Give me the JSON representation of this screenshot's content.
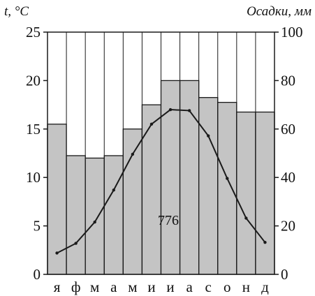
{
  "chart_data": {
    "type": "bar",
    "left_axis_label": "t, °C",
    "right_axis_label": "Осадки, мм",
    "categories": [
      "я",
      "ф",
      "м",
      "а",
      "м",
      "и",
      "и",
      "а",
      "с",
      "о",
      "н",
      "д"
    ],
    "left_ylim": [
      0,
      25
    ],
    "left_ticks": [
      "0",
      "5",
      "10",
      "15",
      "20",
      "25"
    ],
    "right_ylim": [
      0,
      100
    ],
    "right_ticks": [
      "0",
      "20",
      "40",
      "60",
      "80",
      "100"
    ],
    "annotation": "776",
    "series": [
      {
        "kind": "bar",
        "axis": "right",
        "values": [
          62,
          49,
          48,
          49,
          60,
          70,
          80,
          80,
          73,
          71,
          67,
          67
        ]
      },
      {
        "kind": "line",
        "axis": "left",
        "values": [
          2.2,
          3.2,
          5.4,
          8.7,
          12.4,
          15.5,
          17.0,
          16.9,
          14.3,
          9.9,
          5.8,
          3.3
        ]
      }
    ],
    "grid": "vertical",
    "colors": {
      "bars": "#c4c4c4",
      "stroke": "#1a1a1a"
    }
  }
}
